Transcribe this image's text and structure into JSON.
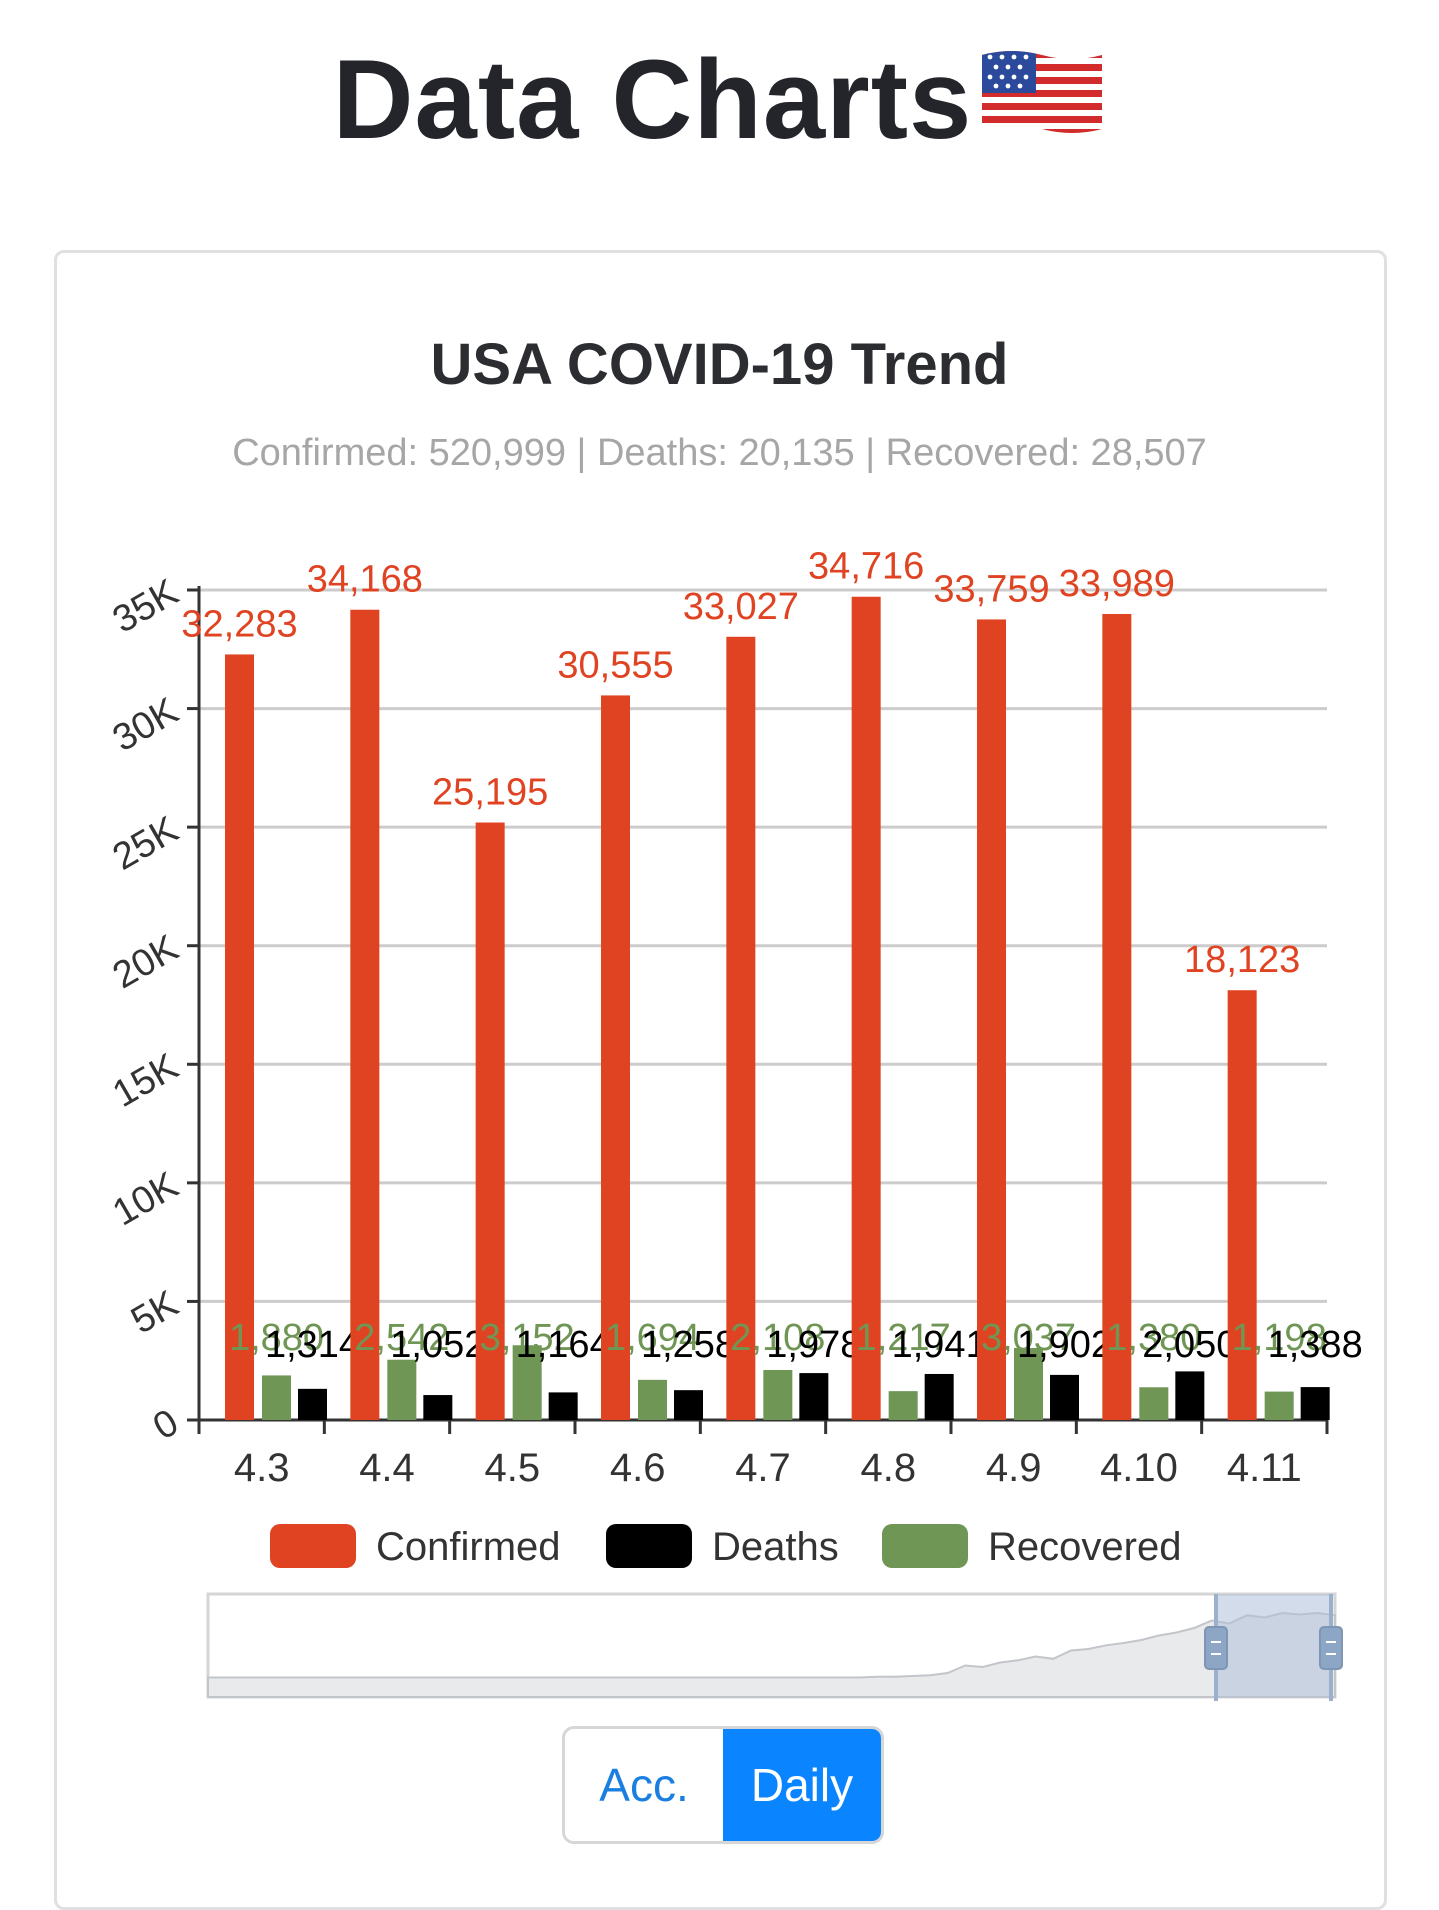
{
  "page": {
    "title": "Data Charts",
    "flag_icon": "us-flag-icon"
  },
  "chart_data": {
    "type": "bar",
    "title": "USA COVID-19 Trend",
    "subtitle": "Confirmed: 520,999 | Deaths: 20,135 | Recovered: 28,507",
    "categories": [
      "4.3",
      "4.4",
      "4.5",
      "4.6",
      "4.7",
      "4.8",
      "4.9",
      "4.10",
      "4.11"
    ],
    "series": [
      {
        "name": "Confirmed",
        "color": "#e04322",
        "values": [
          32283,
          34168,
          25195,
          30555,
          33027,
          34716,
          33759,
          33989,
          18123
        ],
        "labels": [
          "32,283",
          "34,168",
          "25,195",
          "30,555",
          "33,027",
          "34,716",
          "33,759",
          "33,989",
          "18,123"
        ]
      },
      {
        "name": "Recovered",
        "color": "#6f9654",
        "values": [
          1880,
          2542,
          3152,
          1694,
          2108,
          1217,
          3037,
          1380,
          1198
        ],
        "labels": [
          "1,880",
          "2,542",
          "3,152",
          "1,694",
          "2,108",
          "1,217",
          "3,037",
          "1,380",
          "1,198"
        ]
      },
      {
        "name": "Deaths",
        "color": "#000000",
        "values": [
          1314,
          1052,
          1164,
          1258,
          1978,
          1941,
          1902,
          2050,
          1388
        ],
        "labels": [
          "1,314",
          "1,052",
          "1,164",
          "1,258",
          "1,978",
          "1,941",
          "1,902",
          "2,050",
          "1,388"
        ]
      }
    ],
    "legend": [
      {
        "name": "Confirmed",
        "color": "#e04322"
      },
      {
        "name": "Deaths",
        "color": "#000000"
      },
      {
        "name": "Recovered",
        "color": "#6f9654"
      }
    ],
    "yticks": [
      0,
      5000,
      10000,
      15000,
      20000,
      25000,
      30000,
      35000
    ],
    "ytick_labels": [
      "0",
      "5K",
      "10K",
      "15K",
      "20K",
      "25K",
      "30K",
      "35K"
    ],
    "ylim": [
      0,
      35000
    ],
    "grid": true,
    "legend_position": "bottom",
    "overview_trend": [
      0.02,
      0.02,
      0.02,
      0.02,
      0.02,
      0.02,
      0.02,
      0.02,
      0.02,
      0.02,
      0.02,
      0.02,
      0.02,
      0.02,
      0.02,
      0.02,
      0.02,
      0.02,
      0.02,
      0.02,
      0.02,
      0.02,
      0.02,
      0.02,
      0.02,
      0.02,
      0.02,
      0.02,
      0.02,
      0.02,
      0.02,
      0.02,
      0.02,
      0.02,
      0.02,
      0.02,
      0.02,
      0.02,
      0.03,
      0.03,
      0.04,
      0.05,
      0.08,
      0.18,
      0.16,
      0.22,
      0.25,
      0.3,
      0.27,
      0.38,
      0.4,
      0.45,
      0.48,
      0.52,
      0.58,
      0.62,
      0.68,
      0.78,
      0.74,
      0.85,
      0.82,
      0.88,
      0.86,
      0.88,
      0.85
    ]
  },
  "toggle": {
    "acc_label": "Acc.",
    "daily_label": "Daily",
    "active": "Daily"
  }
}
